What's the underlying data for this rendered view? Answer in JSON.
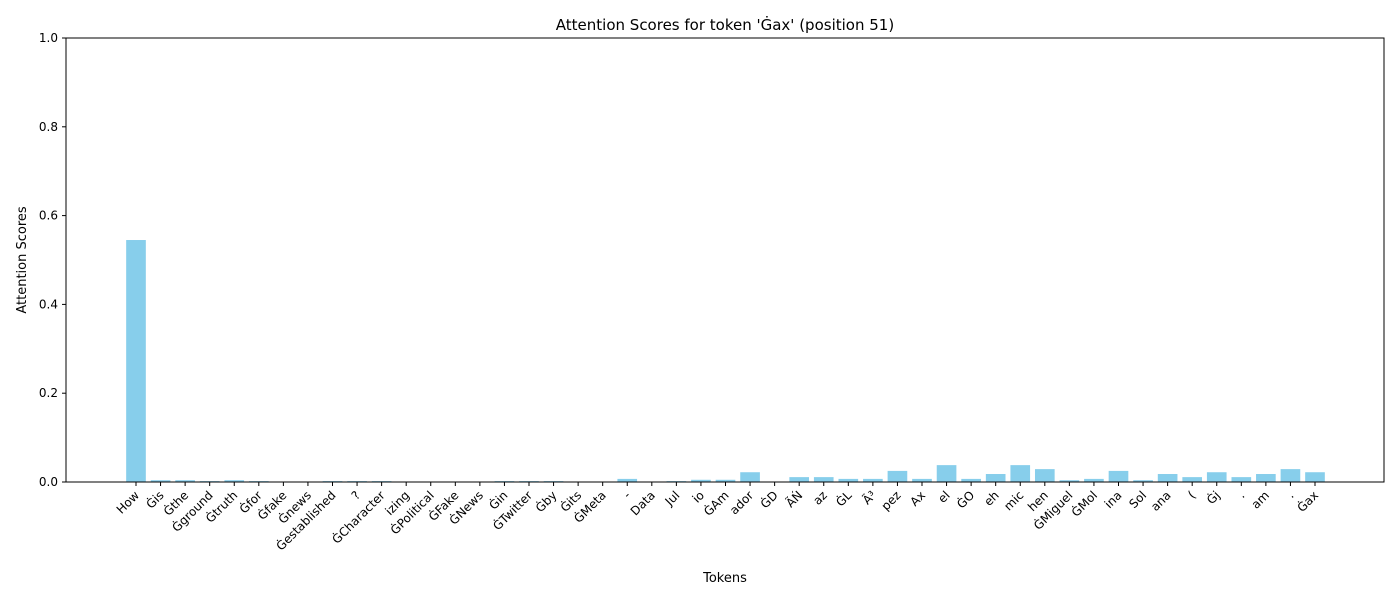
{
  "chart_data": {
    "type": "bar",
    "title": "Attention Scores for token 'Ġax' (position 51)",
    "xlabel": "Tokens",
    "ylabel": "Attention Scores",
    "ylim": [
      0,
      1
    ],
    "yticks": [
      "0.0",
      "0.2",
      "0.4",
      "0.6",
      "0.8",
      "1.0"
    ],
    "grid": false,
    "bar_color": "#87ceeb",
    "categories": [
      "How",
      "Ġis",
      "Ġthe",
      "Ġground",
      "Ġtruth",
      "Ġfor",
      "Ġfake",
      "Ġnews",
      "Ġestablished",
      "?",
      "ĠCharacter",
      "izing",
      "ĠPolitical",
      "ĠFake",
      "ĠNews",
      "Ġin",
      "ĠTwitter",
      "Ġby",
      "Ġits",
      "ĠMeta",
      "-",
      "Data",
      "ĠJul",
      "io",
      "ĠAm",
      "ador",
      "ĠD",
      "ÃŃ",
      "az",
      "ĠL",
      "Ã³",
      "pez",
      "Ax",
      "el",
      "ĠO",
      "eh",
      "mic",
      "hen",
      "ĠMiguel",
      "ĠMol",
      "ina",
      "ĠSol",
      "ana",
      "Ġ(",
      "Ġj",
      ".",
      "am",
      "Ġ.",
      "Ġax"
    ],
    "tick_labels": [
      "How",
      "Ġis",
      "Ġthe",
      "Ġground",
      "Ġtruth",
      "Ġfor",
      "Ġfake",
      "Ġnews",
      "Ġestablished",
      "?",
      "ĠCharacter",
      "izing",
      "ĠPolitical",
      "ĠFake",
      "ĠNews",
      "Ġin",
      "ĠTwitter",
      "Ġby",
      "Ġits",
      "ĠMeta",
      "-",
      "Data",
      "Jul",
      "io",
      "ĠAm",
      "ador",
      "ĠD",
      "ÃŃ",
      "az",
      "ĠL",
      "Ã³",
      "pez",
      "Ax",
      "el",
      "ĠO",
      "eh",
      "mic",
      "hen",
      "ĠMiguel",
      "ĠMol",
      "ina",
      "Sol",
      "ana",
      "(",
      "Ġj",
      ".",
      "am",
      ".",
      "Ġax"
    ],
    "values": [
      0.545,
      0.004,
      0.004,
      0.002,
      0.004,
      0.002,
      0.001,
      0.001,
      0.002,
      0.002,
      0.002,
      0.001,
      0.001,
      0.001,
      0.001,
      0.002,
      0.002,
      0.002,
      0.001,
      0.001,
      0.007,
      0.001,
      0.002,
      0.005,
      0.005,
      0.022,
      0.001,
      0.011,
      0.011,
      0.007,
      0.007,
      0.025,
      0.007,
      0.038,
      0.007,
      0.018,
      0.038,
      0.029,
      0.004,
      0.007,
      0.025,
      0.004,
      0.018,
      0.011,
      0.022,
      0.011,
      0.018,
      0.029,
      0.022
    ]
  }
}
